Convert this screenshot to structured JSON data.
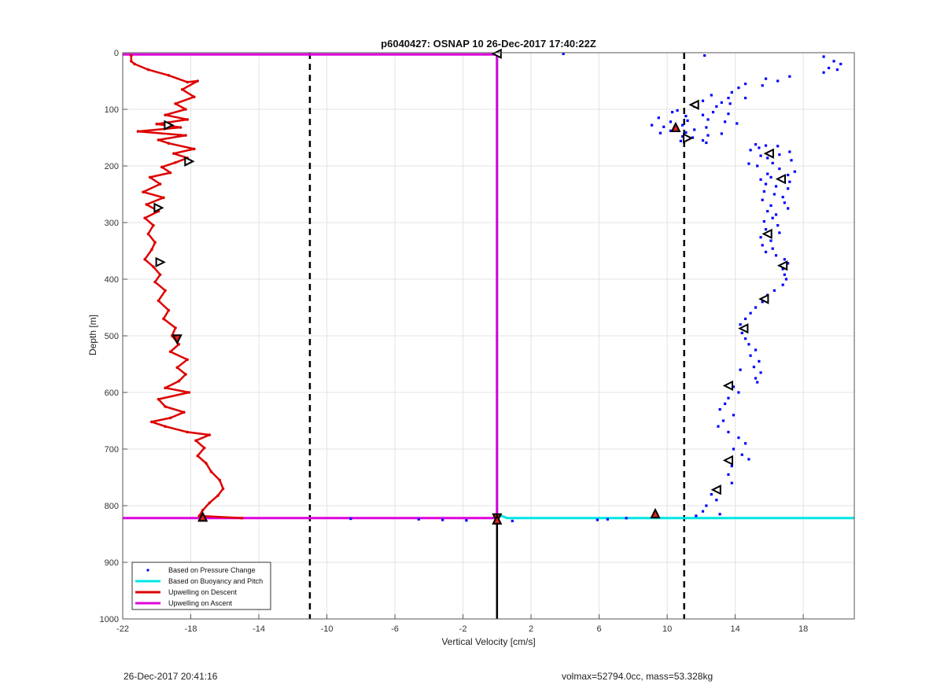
{
  "chart_data": {
    "type": "scatter",
    "title": "p6040427: OSNAP 10 26-Dec-2017 17:40:22Z",
    "xlabel": "Vertical Velocity [cm/s]",
    "ylabel": "Depth [m]",
    "xlim": [
      -22,
      21
    ],
    "ylim": [
      0,
      1000
    ],
    "y_reversed": true,
    "grid": true,
    "xticks": [
      -22,
      -18,
      -14,
      -10,
      -6,
      -2,
      2,
      6,
      10,
      14,
      18
    ],
    "yticks": [
      0,
      100,
      200,
      300,
      400,
      500,
      600,
      700,
      800,
      900,
      1000
    ],
    "legend_position": "bottom-left",
    "legend": [
      {
        "label": "Based on Pressure Change",
        "color": "#0000ff",
        "style": "dot"
      },
      {
        "label": "Based on Buoyancy and Pitch",
        "color": "#00e5e5",
        "style": "line"
      },
      {
        "label": "Upwelling on Descent",
        "color": "#dd0000",
        "style": "line"
      },
      {
        "label": "Upwelling on Ascent",
        "color": "#dd00dd",
        "style": "line"
      }
    ],
    "reference_lines": {
      "threshold_x": [
        -11,
        11
      ],
      "zero_x": 0,
      "apogee_depth": 822
    },
    "series": [
      {
        "name": "Based on Pressure Change",
        "color": "#0000ff",
        "points": [
          [
            3.9,
            2
          ],
          [
            12.2,
            5
          ],
          [
            19.2,
            7
          ],
          [
            19.8,
            15
          ],
          [
            20.2,
            20
          ],
          [
            19.5,
            27
          ],
          [
            20,
            30
          ],
          [
            19.2,
            35
          ],
          [
            17.2,
            42
          ],
          [
            15.8,
            46
          ],
          [
            16.5,
            50
          ],
          [
            14.6,
            55
          ],
          [
            15.6,
            58
          ],
          [
            14.2,
            62
          ],
          [
            13.8,
            70
          ],
          [
            12.6,
            75
          ],
          [
            13.6,
            80
          ],
          [
            14.6,
            80
          ],
          [
            12.1,
            85
          ],
          [
            13.2,
            88
          ],
          [
            13.7,
            90
          ],
          [
            11.6,
            95
          ],
          [
            12.9,
            95
          ],
          [
            10.6,
            102
          ],
          [
            10.3,
            105
          ],
          [
            12.7,
            105
          ],
          [
            13.6,
            108
          ],
          [
            12.1,
            110
          ],
          [
            11.1,
            112
          ],
          [
            9.5,
            115
          ],
          [
            12.4,
            118
          ],
          [
            11.2,
            120
          ],
          [
            10.2,
            122
          ],
          [
            13.4,
            122
          ],
          [
            14.1,
            125
          ],
          [
            9.1,
            128
          ],
          [
            10.9,
            128
          ],
          [
            9.8,
            131
          ],
          [
            12.3,
            132
          ],
          [
            11.6,
            136
          ],
          [
            10.2,
            138
          ],
          [
            11.1,
            141
          ],
          [
            9.6,
            142
          ],
          [
            13.2,
            143
          ],
          [
            12.4,
            146
          ],
          [
            10.9,
            148
          ],
          [
            11.5,
            150
          ],
          [
            12.1,
            155
          ],
          [
            10.8,
            156
          ],
          [
            12.3,
            159
          ],
          [
            15.2,
            162
          ],
          [
            15.8,
            164
          ],
          [
            16.5,
            165
          ],
          [
            15.4,
            168
          ],
          [
            14.9,
            172
          ],
          [
            17.2,
            175
          ],
          [
            16.6,
            180
          ],
          [
            15.5,
            182
          ],
          [
            15.9,
            186
          ],
          [
            17.3,
            190
          ],
          [
            16.2,
            195
          ],
          [
            14.8,
            196
          ],
          [
            15.3,
            200
          ],
          [
            16.6,
            205
          ],
          [
            17.5,
            210
          ],
          [
            15.9,
            214
          ],
          [
            17.1,
            216
          ],
          [
            16.1,
            220
          ],
          [
            15.5,
            224
          ],
          [
            17.2,
            228
          ],
          [
            15.8,
            232
          ],
          [
            16.4,
            236
          ],
          [
            17.1,
            240
          ],
          [
            15.7,
            245
          ],
          [
            16.3,
            250
          ],
          [
            16.8,
            255
          ],
          [
            15.6,
            260
          ],
          [
            16.9,
            265
          ],
          [
            16.1,
            270
          ],
          [
            17.1,
            275
          ],
          [
            15.9,
            280
          ],
          [
            16.4,
            286
          ],
          [
            16.2,
            292
          ],
          [
            15.7,
            298
          ],
          [
            16.5,
            305
          ],
          [
            15.8,
            312
          ],
          [
            16.6,
            318
          ],
          [
            15.5,
            326
          ],
          [
            16.1,
            332
          ],
          [
            15.6,
            340
          ],
          [
            16.2,
            346
          ],
          [
            15.8,
            352
          ],
          [
            16.4,
            358
          ],
          [
            16.9,
            365
          ],
          [
            17.1,
            372
          ],
          [
            16.8,
            382
          ],
          [
            16.9,
            392
          ],
          [
            17,
            400
          ],
          [
            16.8,
            410
          ],
          [
            16.3,
            420
          ],
          [
            15.9,
            428
          ],
          [
            15.6,
            440
          ],
          [
            15.2,
            450
          ],
          [
            14.9,
            460
          ],
          [
            14.6,
            470
          ],
          [
            14.3,
            480
          ],
          [
            14.4,
            495
          ],
          [
            14.6,
            505
          ],
          [
            14.8,
            515
          ],
          [
            15.2,
            525
          ],
          [
            14.9,
            535
          ],
          [
            15.4,
            545
          ],
          [
            15.1,
            555
          ],
          [
            15.5,
            565
          ],
          [
            15.2,
            575
          ],
          [
            15.3,
            582
          ],
          [
            14.3,
            560
          ],
          [
            13.9,
            590
          ],
          [
            14.2,
            600
          ],
          [
            13.6,
            610
          ],
          [
            13.4,
            620
          ],
          [
            13.1,
            630
          ],
          [
            13.9,
            640
          ],
          [
            13.3,
            650
          ],
          [
            13,
            660
          ],
          [
            13.6,
            670
          ],
          [
            14.2,
            680
          ],
          [
            14.6,
            690
          ],
          [
            13.9,
            700
          ],
          [
            14.4,
            710
          ],
          [
            14.8,
            718
          ],
          [
            13.8,
            730
          ],
          [
            13.6,
            745
          ],
          [
            13.8,
            760
          ],
          [
            12.9,
            770
          ],
          [
            12.6,
            780
          ],
          [
            12.9,
            790
          ],
          [
            12.3,
            800
          ],
          [
            12.1,
            810
          ],
          [
            11.7,
            818
          ],
          [
            13.1,
            815
          ],
          [
            -8.6,
            823
          ],
          [
            -4.6,
            824
          ],
          [
            -3.2,
            825
          ],
          [
            -1.8,
            826
          ],
          [
            0.9,
            827
          ],
          [
            5.9,
            825
          ],
          [
            6.5,
            824
          ],
          [
            7.6,
            822
          ]
        ]
      },
      {
        "name": "Based on Buoyancy and Pitch",
        "color": "#00e5e5",
        "points": [
          [
            0,
            2
          ],
          [
            0,
            100
          ],
          [
            0,
            300
          ],
          [
            0,
            600
          ],
          [
            0,
            815
          ],
          [
            0.6,
            822
          ],
          [
            21,
            822
          ]
        ]
      },
      {
        "name": "Upwelling on Descent",
        "color": "#dd0000",
        "points": [
          [
            -21.5,
            5
          ],
          [
            -21.5,
            15
          ],
          [
            -21.3,
            20
          ],
          [
            -20.5,
            30
          ],
          [
            -19.3,
            40
          ],
          [
            -18.2,
            52
          ],
          [
            -17.6,
            50
          ],
          [
            -18.5,
            65
          ],
          [
            -17.8,
            78
          ],
          [
            -18.9,
            90
          ],
          [
            -18.3,
            100
          ],
          [
            -19.5,
            110
          ],
          [
            -18.2,
            118
          ],
          [
            -20,
            126
          ],
          [
            -18.6,
            132
          ],
          [
            -21.1,
            139
          ],
          [
            -18.3,
            146
          ],
          [
            -19.9,
            154
          ],
          [
            -19.3,
            160
          ],
          [
            -17.8,
            170
          ],
          [
            -19,
            178
          ],
          [
            -18.2,
            186
          ],
          [
            -18.9,
            194
          ],
          [
            -19.7,
            202
          ],
          [
            -19.2,
            212
          ],
          [
            -20.4,
            220
          ],
          [
            -19.8,
            232
          ],
          [
            -20.8,
            246
          ],
          [
            -19.6,
            256
          ],
          [
            -20.6,
            268
          ],
          [
            -19.9,
            280
          ],
          [
            -20.7,
            292
          ],
          [
            -20.2,
            305
          ],
          [
            -20.5,
            320
          ],
          [
            -20.1,
            335
          ],
          [
            -20.3,
            348
          ],
          [
            -20.7,
            365
          ],
          [
            -20.2,
            378
          ],
          [
            -19.8,
            392
          ],
          [
            -20.1,
            405
          ],
          [
            -19.5,
            420
          ],
          [
            -19.9,
            438
          ],
          [
            -19.3,
            455
          ],
          [
            -19.6,
            470
          ],
          [
            -18.9,
            486
          ],
          [
            -19.1,
            500
          ],
          [
            -18.7,
            515
          ],
          [
            -19.2,
            528
          ],
          [
            -18.2,
            542
          ],
          [
            -18.8,
            556
          ],
          [
            -18.3,
            568
          ],
          [
            -18.7,
            580
          ],
          [
            -19.5,
            592
          ],
          [
            -18.1,
            600
          ],
          [
            -19.9,
            612
          ],
          [
            -19.5,
            625
          ],
          [
            -18.4,
            635
          ],
          [
            -19.2,
            645
          ],
          [
            -20.3,
            652
          ],
          [
            -19.5,
            660
          ],
          [
            -18.2,
            670
          ],
          [
            -16.9,
            675
          ],
          [
            -17.7,
            685
          ],
          [
            -17.2,
            698
          ],
          [
            -17.6,
            712
          ],
          [
            -17.1,
            725
          ],
          [
            -16.8,
            740
          ],
          [
            -16.3,
            755
          ],
          [
            -16.1,
            770
          ],
          [
            -16.4,
            782
          ],
          [
            -16.9,
            795
          ],
          [
            -17.3,
            808
          ],
          [
            -17.5,
            818
          ],
          [
            -15,
            822
          ]
        ]
      },
      {
        "name": "Upwelling on Ascent",
        "color": "#dd00dd",
        "points": [
          [
            -22,
            822
          ],
          [
            0,
            822
          ],
          [
            0,
            3
          ],
          [
            -22,
            3
          ]
        ]
      }
    ],
    "marker_points": [
      {
        "x": 0,
        "y": 2,
        "shape": "triangle-left"
      },
      {
        "x": 11.6,
        "y": 92,
        "shape": "triangle-left"
      },
      {
        "x": 10.5,
        "y": 132,
        "shape": "triangle-up"
      },
      {
        "x": 11.2,
        "y": 151,
        "shape": "triangle-right"
      },
      {
        "x": 16,
        "y": 178,
        "shape": "triangle-left"
      },
      {
        "x": 16.7,
        "y": 223,
        "shape": "triangle-left"
      },
      {
        "x": 15.9,
        "y": 320,
        "shape": "triangle-left"
      },
      {
        "x": 16.8,
        "y": 376,
        "shape": "triangle-left"
      },
      {
        "x": 15.7,
        "y": 435,
        "shape": "triangle-left"
      },
      {
        "x": 14.5,
        "y": 487,
        "shape": "triangle-left"
      },
      {
        "x": 13.6,
        "y": 588,
        "shape": "triangle-left"
      },
      {
        "x": 13.6,
        "y": 720,
        "shape": "triangle-left"
      },
      {
        "x": 12.9,
        "y": 772,
        "shape": "triangle-left"
      },
      {
        "x": 9.3,
        "y": 814,
        "shape": "triangle-up"
      },
      {
        "x": -19.3,
        "y": 128,
        "shape": "triangle-right"
      },
      {
        "x": -18.1,
        "y": 192,
        "shape": "triangle-right"
      },
      {
        "x": -19.9,
        "y": 274,
        "shape": "triangle-right"
      },
      {
        "x": -19.8,
        "y": 370,
        "shape": "triangle-right"
      },
      {
        "x": -18.8,
        "y": 506,
        "shape": "triangle-down"
      },
      {
        "x": -17.3,
        "y": 820,
        "shape": "triangle-up"
      },
      {
        "x": 0,
        "y": 822,
        "shape": "triangle-down"
      },
      {
        "x": 0,
        "y": 825,
        "shape": "triangle-up"
      }
    ]
  },
  "footer": {
    "timestamp": "26-Dec-2017 20:41:16",
    "info": "volmax=52794.0cc, mass=53.328kg"
  }
}
